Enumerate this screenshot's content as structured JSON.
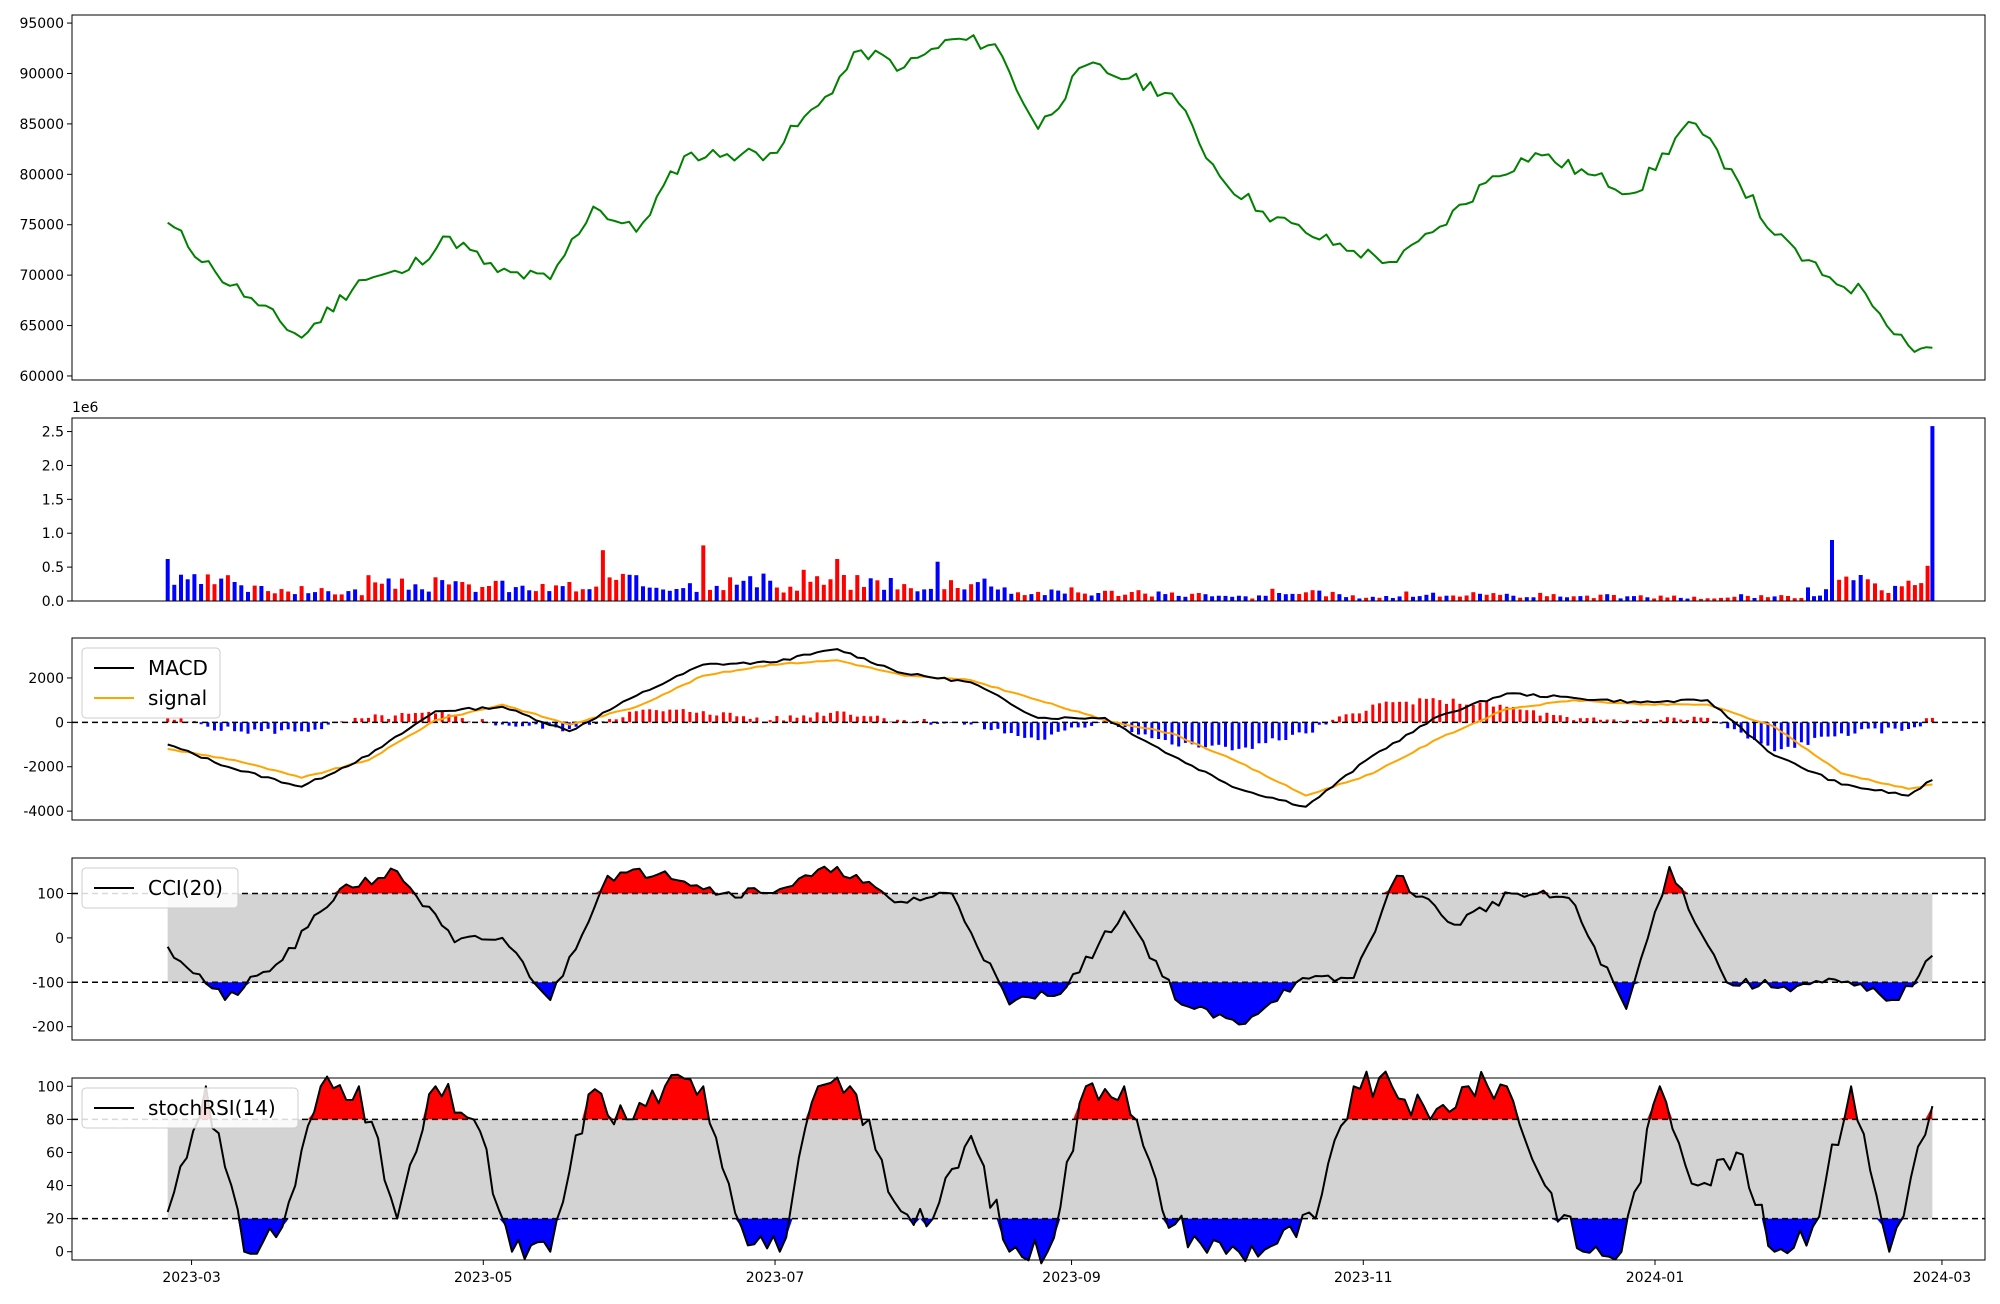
{
  "chart_data": [
    {
      "type": "line",
      "name": "price",
      "color": "#008000",
      "x_ticks": [
        "2023-03",
        "2023-05",
        "2023-07",
        "2023-09",
        "2023-11",
        "2024-01",
        "2024-03"
      ],
      "x": [
        "2023-02-24",
        "2023-03-06",
        "2023-03-15",
        "2023-03-24",
        "2023-04-05",
        "2023-04-14",
        "2023-04-24",
        "2023-05-04",
        "2023-05-15",
        "2023-05-24",
        "2023-06-02",
        "2023-06-12",
        "2023-06-21",
        "2023-06-30",
        "2023-07-10",
        "2023-07-19",
        "2023-07-28",
        "2023-08-07",
        "2023-08-16",
        "2023-08-25",
        "2023-09-04",
        "2023-09-13",
        "2023-09-22",
        "2023-10-02",
        "2023-10-11",
        "2023-10-20",
        "2023-10-30",
        "2023-11-08",
        "2023-11-17",
        "2023-11-28",
        "2023-12-07",
        "2023-12-18",
        "2023-12-28",
        "2024-01-08",
        "2024-01-17",
        "2024-01-26",
        "2024-02-05",
        "2024-02-14",
        "2024-02-23",
        "2024-02-28"
      ],
      "y": [
        75200,
        70300,
        67000,
        63800,
        69500,
        70200,
        73800,
        70300,
        69600,
        76800,
        74300,
        81800,
        82000,
        82100,
        86800,
        92300,
        90600,
        93400,
        92900,
        84500,
        90800,
        89500,
        88000,
        79800,
        76300,
        74200,
        72400,
        71300,
        74800,
        79800,
        82100,
        80000,
        78200,
        85200,
        80500,
        74000,
        70000,
        68200,
        63000,
        62800
      ],
      "ylim": [
        59600,
        95800
      ],
      "yticks": [
        60000,
        65000,
        70000,
        75000,
        80000,
        85000,
        90000,
        95000
      ]
    },
    {
      "type": "bar",
      "name": "volume",
      "offset_label": "1e6",
      "ylim": [
        0,
        2.7
      ],
      "yticks": [
        "0.0",
        "0.5",
        "1.0",
        "1.5",
        "2.0",
        "2.5"
      ],
      "x": [
        "2023-02-24",
        "2023-03-10",
        "2023-03-24",
        "2023-04-07",
        "2023-04-21",
        "2023-05-05",
        "2023-05-19",
        "2023-05-26",
        "2023-06-02",
        "2023-06-16",
        "2023-06-30",
        "2023-07-07",
        "2023-07-14",
        "2023-07-28",
        "2023-08-04",
        "2023-08-18",
        "2023-09-01",
        "2023-09-15",
        "2023-09-29",
        "2023-10-13",
        "2023-10-27",
        "2023-11-10",
        "2023-11-24",
        "2023-12-08",
        "2023-12-22",
        "2024-01-05",
        "2024-01-19",
        "2024-02-02",
        "2024-02-07",
        "2024-02-16",
        "2024-02-23",
        "2024-02-27",
        "2024-02-28"
      ],
      "values": [
        0.62,
        0.28,
        0.22,
        0.38,
        0.35,
        0.3,
        0.28,
        0.75,
        0.38,
        0.82,
        0.3,
        0.46,
        0.62,
        0.25,
        0.58,
        0.2,
        0.2,
        0.16,
        0.1,
        0.18,
        0.1,
        0.14,
        0.13,
        0.12,
        0.1,
        0.08,
        0.1,
        0.2,
        0.9,
        0.26,
        0.3,
        0.52,
        2.58
      ],
      "colors": [
        "#0000ff",
        "#0000ff",
        "#ff0000",
        "#ff0000",
        "#ff0000",
        "#0000ff",
        "#ff0000",
        "#ff0000",
        "#0000ff",
        "#ff0000",
        "#0000ff",
        "#ff0000",
        "#ff0000",
        "#ff0000",
        "#0000ff",
        "#0000ff",
        "#ff0000",
        "#ff0000",
        "#0000ff",
        "#ff0000",
        "#0000ff",
        "#ff0000",
        "#ff0000",
        "#ff0000",
        "#0000ff",
        "#ff0000",
        "#0000ff",
        "#0000ff",
        "#0000ff",
        "#ff0000",
        "#ff0000",
        "#ff0000",
        "#0000ff"
      ]
    },
    {
      "type": "line",
      "name": "macd",
      "ylim": [
        -4400,
        3800
      ],
      "yticks": [
        -4000,
        -2000,
        0,
        2000
      ],
      "legend": [
        {
          "label": "MACD",
          "color": "#000000"
        },
        {
          "label": "signal",
          "color": "#ffa500"
        }
      ],
      "x": [
        "2023-02-24",
        "2023-03-10",
        "2023-03-24",
        "2023-04-07",
        "2023-04-21",
        "2023-05-05",
        "2023-05-19",
        "2023-06-02",
        "2023-06-16",
        "2023-06-30",
        "2023-07-14",
        "2023-07-28",
        "2023-08-11",
        "2023-08-25",
        "2023-09-08",
        "2023-09-22",
        "2023-10-06",
        "2023-10-20",
        "2023-11-03",
        "2023-11-17",
        "2023-12-01",
        "2023-12-15",
        "2023-12-29",
        "2024-01-12",
        "2024-01-26",
        "2024-02-09",
        "2024-02-23",
        "2024-02-28"
      ],
      "series": [
        {
          "name": "MACD",
          "values": [
            -1000,
            -2100,
            -2900,
            -1500,
            500,
            700,
            -400,
            1200,
            2600,
            2700,
            3300,
            2200,
            1800,
            200,
            200,
            -1500,
            -3000,
            -3800,
            -1500,
            300,
            1300,
            1100,
            900,
            1000,
            -1500,
            -2800,
            -3300,
            -2600
          ]
        },
        {
          "name": "signal",
          "values": [
            -1200,
            -1700,
            -2500,
            -1700,
            100,
            800,
            -100,
            700,
            2100,
            2600,
            2800,
            2100,
            1900,
            1000,
            100,
            -500,
            -1800,
            -3300,
            -2300,
            -700,
            600,
            1000,
            800,
            800,
            -200,
            -2300,
            -3000,
            -2800
          ]
        },
        {
          "name": "histogram",
          "values": [
            200,
            -400,
            -400,
            200,
            400,
            -100,
            -300,
            500,
            500,
            100,
            500,
            100,
            -100,
            -800,
            100,
            -1000,
            -1200,
            -500,
            800,
            1000,
            700,
            100,
            100,
            200,
            -1300,
            -500,
            -300,
            200
          ]
        }
      ]
    },
    {
      "type": "line",
      "name": "cci",
      "ylim": [
        -230,
        180
      ],
      "yticks": [
        -200,
        -100,
        0,
        100
      ],
      "bands": [
        -100,
        100
      ],
      "legend": [
        {
          "label": "CCI(20)",
          "color": "#000000"
        }
      ],
      "x": [
        "2023-02-24",
        "2023-03-08",
        "2023-03-20",
        "2023-04-01",
        "2023-04-13",
        "2023-04-25",
        "2023-05-05",
        "2023-05-15",
        "2023-05-27",
        "2023-06-08",
        "2023-06-20",
        "2023-07-02",
        "2023-07-14",
        "2023-07-26",
        "2023-08-07",
        "2023-08-19",
        "2023-08-31",
        "2023-09-12",
        "2023-09-24",
        "2023-10-06",
        "2023-10-18",
        "2023-10-30",
        "2023-11-08",
        "2023-11-20",
        "2023-12-02",
        "2023-12-14",
        "2023-12-26",
        "2024-01-04",
        "2024-01-16",
        "2024-01-28",
        "2024-02-09",
        "2024-02-21",
        "2024-02-28"
      ],
      "values": [
        -20,
        -140,
        -50,
        110,
        150,
        -10,
        0,
        -140,
        140,
        150,
        100,
        110,
        160,
        80,
        100,
        -150,
        -110,
        60,
        -150,
        -195,
        -100,
        -90,
        140,
        30,
        100,
        90,
        -160,
        160,
        -100,
        -110,
        -100,
        -140,
        -40
      ]
    },
    {
      "type": "line",
      "name": "stochrsi",
      "ylim": [
        -5,
        105
      ],
      "yticks": [
        0,
        20,
        40,
        60,
        80,
        100
      ],
      "bands": [
        20,
        80
      ],
      "legend": [
        {
          "label": "stochRSI(14)",
          "color": "#000000"
        }
      ],
      "x": [
        "2023-02-24",
        "2023-03-04",
        "2023-03-12",
        "2023-03-20",
        "2023-03-28",
        "2023-04-05",
        "2023-04-13",
        "2023-04-21",
        "2023-04-29",
        "2023-05-07",
        "2023-05-15",
        "2023-05-23",
        "2023-05-31",
        "2023-06-08",
        "2023-06-16",
        "2023-06-24",
        "2023-07-02",
        "2023-07-10",
        "2023-07-18",
        "2023-07-26",
        "2023-08-03",
        "2023-08-11",
        "2023-08-19",
        "2023-08-27",
        "2023-09-04",
        "2023-09-12",
        "2023-09-20",
        "2023-09-28",
        "2023-10-06",
        "2023-10-14",
        "2023-10-22",
        "2023-10-30",
        "2023-11-07",
        "2023-11-15",
        "2023-11-23",
        "2023-12-01",
        "2023-12-09",
        "2023-12-17",
        "2023-12-25",
        "2024-01-02",
        "2024-01-10",
        "2024-01-18",
        "2024-01-26",
        "2024-02-03",
        "2024-02-11",
        "2024-02-19",
        "2024-02-28"
      ],
      "values": [
        24,
        100,
        0,
        15,
        100,
        100,
        20,
        100,
        80,
        0,
        0,
        95,
        80,
        100,
        100,
        15,
        0,
        100,
        95,
        30,
        20,
        70,
        0,
        0,
        100,
        100,
        25,
        5,
        0,
        5,
        20,
        100,
        100,
        80,
        100,
        100,
        40,
        0,
        0,
        100,
        40,
        60,
        0,
        15,
        100,
        0,
        88
      ]
    }
  ]
}
